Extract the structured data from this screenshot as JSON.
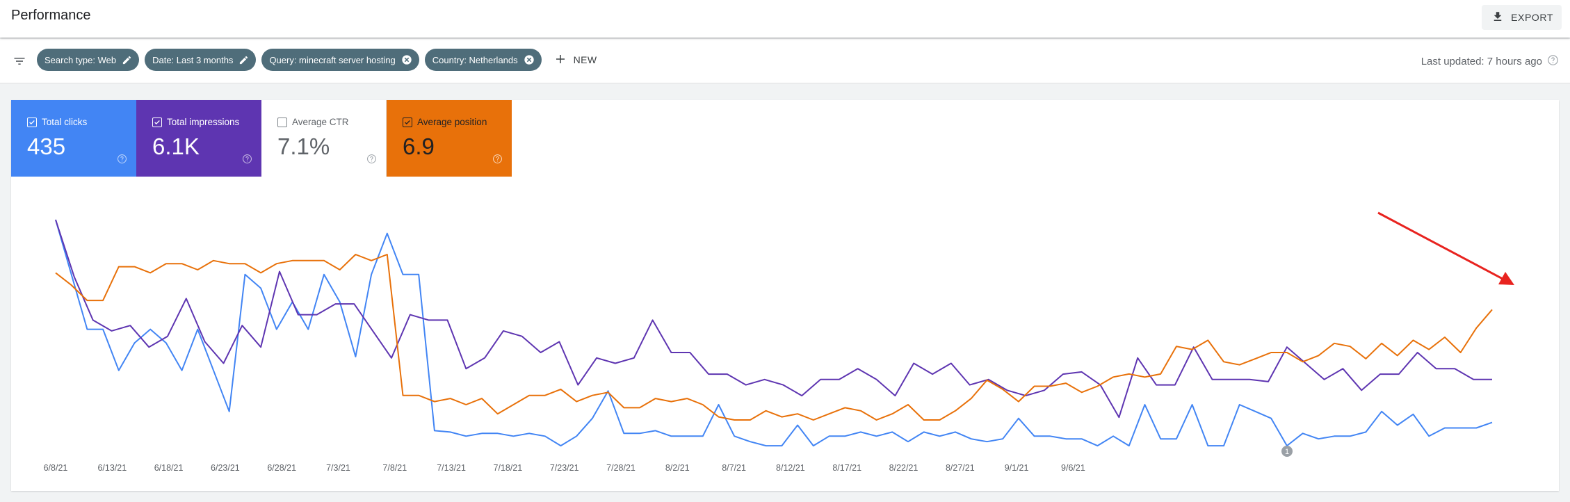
{
  "header": {
    "title": "Performance",
    "export_label": "EXPORT",
    "export_icon": "download-icon"
  },
  "filters": {
    "chips": [
      {
        "label": "Search type: Web",
        "action_icon": "edit-icon"
      },
      {
        "label": "Date: Last 3 months",
        "action_icon": "edit-icon"
      },
      {
        "label": "Query: minecraft server hosting",
        "action_icon": "close-icon"
      },
      {
        "label": "Country: Netherlands",
        "action_icon": "close-icon"
      }
    ],
    "new_label": "NEW",
    "last_updated": "Last updated: 7 hours ago"
  },
  "metrics": [
    {
      "key": "clicks",
      "label": "Total clicks",
      "value": "435",
      "checked": true,
      "color": "#4285f4"
    },
    {
      "key": "impressions",
      "label": "Total impressions",
      "value": "6.1K",
      "checked": true,
      "color": "#5e35b1"
    },
    {
      "key": "ctr",
      "label": "Average CTR",
      "value": "7.1%",
      "checked": false,
      "color": "#ffffff"
    },
    {
      "key": "position",
      "label": "Average position",
      "value": "6.9",
      "checked": true,
      "color": "#e8710a"
    }
  ],
  "annotation_marker": "1",
  "chart_data": {
    "type": "line",
    "x_tick_labels": [
      "6/8/21",
      "6/13/21",
      "6/18/21",
      "6/23/21",
      "6/28/21",
      "7/3/21",
      "7/8/21",
      "7/13/21",
      "7/18/21",
      "7/23/21",
      "7/28/21",
      "8/2/21",
      "8/7/21",
      "8/12/21",
      "8/17/21",
      "8/22/21",
      "8/27/21",
      "9/1/21",
      "9/6/21"
    ],
    "x_start": "6/8/21",
    "grid": false,
    "legend": "metric tiles above chart",
    "highlight": {
      "type": "arrow",
      "color": "#e8231f",
      "points_to": "end of Average position series"
    },
    "series": [
      {
        "name": "Total clicks",
        "color": "#4285f4",
        "axis": "left",
        "values": [
          16,
          12,
          8,
          8,
          5,
          7,
          8,
          7,
          5,
          8,
          5,
          2,
          12,
          11,
          8,
          10,
          8,
          12,
          10,
          6,
          12,
          15,
          12,
          12,
          0.6,
          0.5,
          0.2,
          0.4,
          0.4,
          0.2,
          0.4,
          0.2,
          -0.5,
          0.2,
          1.5,
          3.5,
          0.4,
          0.4,
          0.6,
          0.2,
          0.2,
          0.2,
          2.5,
          0.2,
          -0.2,
          -0.5,
          -0.5,
          1,
          -0.5,
          0.2,
          0.2,
          0.5,
          0.2,
          0.5,
          -0.2,
          0.5,
          0.2,
          0.5,
          0,
          -0.2,
          0,
          1.5,
          0.2,
          0.2,
          0,
          0,
          -0.5,
          0.2,
          -0.5,
          2.5,
          0,
          0,
          2.5,
          -0.5,
          -0.5,
          2.5,
          2,
          1.5,
          -0.5,
          0.4,
          0,
          0.2,
          0.2,
          0.5,
          2,
          1,
          1.8,
          0.2,
          0.8,
          0.8,
          0.8,
          1.2
        ]
      },
      {
        "name": "Total impressions",
        "color": "#5e35b1",
        "axis": "left",
        "values": [
          203,
          150,
          110,
          100,
          105,
          85,
          95,
          130,
          90,
          70,
          105,
          85,
          155,
          115,
          115,
          125,
          125,
          100,
          75,
          115,
          110,
          110,
          65,
          75,
          100,
          95,
          80,
          90,
          50,
          75,
          70,
          75,
          110,
          80,
          80,
          60,
          60,
          50,
          55,
          50,
          40,
          55,
          55,
          65,
          55,
          40,
          70,
          60,
          70,
          50,
          55,
          45,
          40,
          45,
          60,
          62,
          50,
          20,
          75,
          50,
          50,
          85,
          55,
          55,
          55,
          53,
          85,
          70,
          55,
          65,
          45,
          60,
          60,
          80,
          65,
          65,
          55,
          55
        ]
      },
      {
        "name": "Average position",
        "color": "#e8710a",
        "axis": "right",
        "values": [
          6.9,
          7.3,
          7.8,
          7.8,
          6.7,
          6.7,
          6.9,
          6.6,
          6.6,
          6.8,
          6.5,
          6.6,
          6.6,
          6.9,
          6.6,
          6.5,
          6.5,
          6.5,
          6.8,
          6.3,
          6.5,
          6.3,
          10.9,
          10.9,
          11.1,
          11,
          11.2,
          11,
          11.5,
          11.2,
          10.9,
          10.9,
          10.7,
          11.1,
          10.9,
          10.8,
          11.3,
          11.3,
          11,
          11.1,
          11,
          11.2,
          11.6,
          11.7,
          11.7,
          11.4,
          11.6,
          11.5,
          11.7,
          11.5,
          11.3,
          11.4,
          11.7,
          11.5,
          11.2,
          11.7,
          11.7,
          11.4,
          11,
          10.4,
          10.7,
          11.1,
          10.6,
          10.6,
          10.5,
          10.8,
          10.6,
          10.3,
          10.2,
          10.3,
          10.2,
          9.3,
          9.4,
          9.1,
          9.8,
          9.9,
          9.7,
          9.5,
          9.5,
          9.8,
          9.6,
          9.2,
          9.3,
          9.7,
          9.2,
          9.6,
          9.1,
          9.4,
          9,
          9.5,
          8.7,
          8.1
        ]
      }
    ]
  }
}
